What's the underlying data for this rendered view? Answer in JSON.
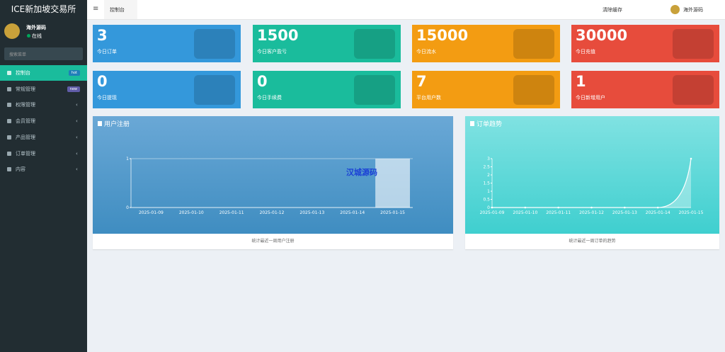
{
  "sidebar": {
    "brand": "ICE新加坡交易所",
    "user": "海外源码",
    "status": "在线",
    "search": "搜索菜单",
    "menu": [
      {
        "label": "控制台",
        "badge": "hot"
      },
      {
        "label": "常规管理",
        "badge": "new"
      },
      {
        "label": "权限管理"
      },
      {
        "label": "会员管理"
      },
      {
        "label": "产品管理"
      },
      {
        "label": "订单管理"
      },
      {
        "label": "内容"
      }
    ]
  },
  "topbar": {
    "tab": "控制台",
    "clear": "清除缓存",
    "user": "海外源码"
  },
  "stats": [
    {
      "value": 3,
      "label": "今日订单",
      "color": "#3498db"
    },
    {
      "value": 1500,
      "label": "今日客户盈亏",
      "color": "#1abc9c"
    },
    {
      "value": 15000,
      "label": "今日流水",
      "color": "#f39c12"
    },
    {
      "value": 30000,
      "label": "今日充值",
      "color": "#e74c3c"
    },
    {
      "value": 0,
      "label": "今日提现",
      "color": "#3498db"
    },
    {
      "value": 0,
      "label": "今日手续费",
      "color": "#1abc9c"
    },
    {
      "value": 7,
      "label": "平台用户数",
      "color": "#f39c12"
    },
    {
      "value": 1,
      "label": "今日新增用户",
      "color": "#e74c3c"
    }
  ],
  "chart_data": [
    {
      "type": "bar",
      "title": "用户注册",
      "categories": [
        "2025-01-09",
        "2025-01-10",
        "2025-01-11",
        "2025-01-12",
        "2025-01-13",
        "2025-01-14",
        "2025-01-15"
      ],
      "values": [
        0,
        0,
        0,
        0,
        0,
        0,
        1
      ],
      "ylim": [
        0,
        1
      ],
      "yticks": [
        0,
        1
      ],
      "annotation": "汉城源码",
      "footer": "统计最近一周用户注册"
    },
    {
      "type": "line",
      "title": "订单趋势",
      "categories": [
        "2025-01-09",
        "2025-01-10",
        "2025-01-11",
        "2025-01-12",
        "2025-01-13",
        "2025-01-14",
        "2025-01-15"
      ],
      "values": [
        0,
        0,
        0,
        0,
        0,
        0,
        3
      ],
      "ylim": [
        0,
        3
      ],
      "yticks": [
        0,
        0.5,
        1,
        1.5,
        2,
        2.5,
        3
      ],
      "footer": "统计最近一周订单的趋势"
    }
  ]
}
